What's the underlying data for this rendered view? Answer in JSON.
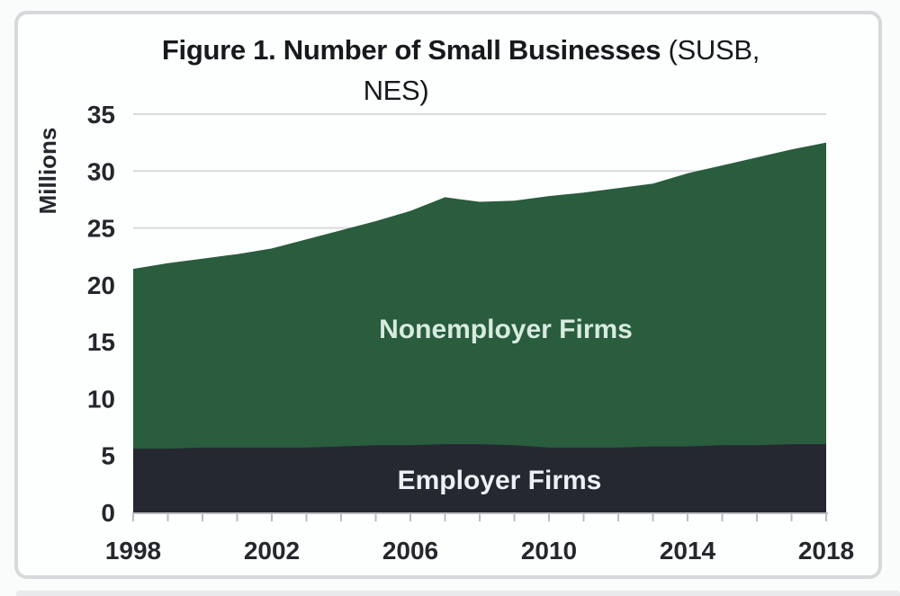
{
  "title": {
    "bold": "Figure 1. Number of Small Businesses",
    "suffix": "(SUSB,",
    "line2": "NES)"
  },
  "chart_data": {
    "type": "area",
    "stacked": true,
    "title": "Figure 1. Number of Small Businesses (SUSB, NES)",
    "xlabel": "",
    "ylabel": "Millions",
    "ylim": [
      0,
      35
    ],
    "ytick_step": 5,
    "y_tick_values": [
      0,
      5,
      10,
      15,
      20,
      25,
      30,
      35
    ],
    "y_tick_labels": [
      "0",
      "5",
      "10",
      "15",
      "20",
      "25",
      "30",
      "35"
    ],
    "grid": true,
    "legend": "labels-inside-areas",
    "years": [
      1998,
      1999,
      2000,
      2001,
      2002,
      2003,
      2004,
      2005,
      2006,
      2007,
      2008,
      2009,
      2010,
      2011,
      2012,
      2013,
      2014,
      2015,
      2016,
      2017,
      2018
    ],
    "x_tick_years": [
      1998,
      2002,
      2006,
      2010,
      2014,
      2018
    ],
    "x_tick_labels": [
      "1998",
      "2002",
      "2006",
      "2010",
      "2014",
      "2018"
    ],
    "series": [
      {
        "name": "Employer Firms",
        "color": "#252830",
        "label_color": "#edf0f5",
        "values": [
          5.6,
          5.6,
          5.7,
          5.7,
          5.7,
          5.7,
          5.8,
          5.9,
          5.9,
          6.0,
          6.0,
          5.9,
          5.7,
          5.7,
          5.7,
          5.8,
          5.8,
          5.9,
          5.9,
          6.0,
          6.0
        ]
      },
      {
        "name": "Nonemployer Firms",
        "color": "#2a5c3e",
        "label_color": "#d7ebe0",
        "values": [
          15.8,
          16.3,
          16.6,
          17.0,
          17.5,
          18.3,
          19.0,
          19.7,
          20.6,
          21.7,
          21.3,
          21.5,
          22.1,
          22.4,
          22.8,
          23.1,
          24.0,
          24.6,
          25.3,
          25.9,
          26.5
        ]
      }
    ],
    "totals": [
      21.4,
      21.9,
      22.3,
      22.7,
      23.2,
      24.0,
      24.8,
      25.6,
      26.5,
      27.7,
      27.3,
      27.4,
      27.8,
      28.1,
      28.5,
      28.9,
      29.8,
      30.5,
      31.2,
      31.9,
      32.5
    ],
    "colors": {
      "grid": "#d8dadc",
      "axis": "#b9bcc0",
      "tick_text": "#24272c",
      "title_text": "#17191d",
      "card_border": "#d6d9db",
      "card_background": "#fdfefe"
    }
  }
}
